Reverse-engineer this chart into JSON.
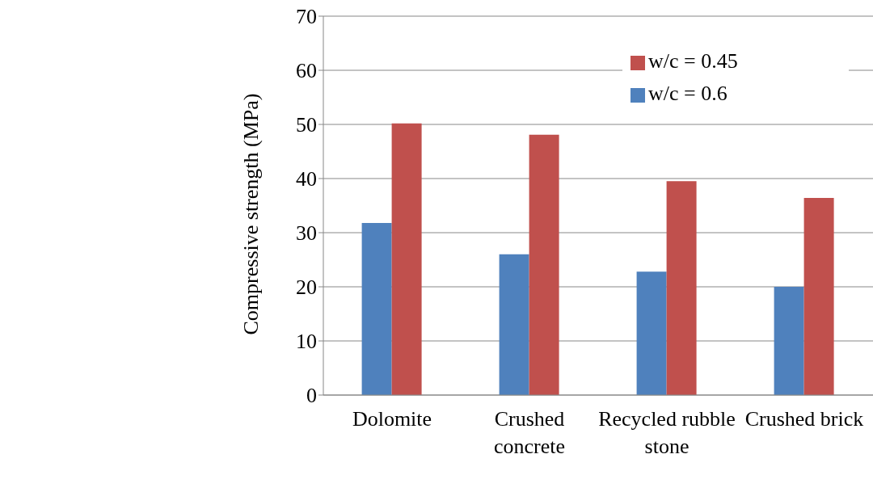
{
  "chart_data": {
    "type": "bar",
    "ylabel": "Compressive strength (MPa)",
    "categories": [
      "Dolomite",
      "Crushed concrete",
      "Recycled rubble stone",
      "Crushed brick"
    ],
    "series": [
      {
        "name": "w/c = 0.6",
        "color": "#4f81bd",
        "values": [
          31.8,
          26.0,
          22.8,
          20.0
        ]
      },
      {
        "name": "w/c = 0.45",
        "color": "#c0504d",
        "values": [
          50.2,
          48.1,
          39.5,
          36.4
        ]
      }
    ],
    "ylim": [
      0,
      70
    ],
    "yticks": [
      0,
      10,
      20,
      30,
      40,
      50,
      60,
      70
    ],
    "grid": "y",
    "legend": "top right"
  }
}
